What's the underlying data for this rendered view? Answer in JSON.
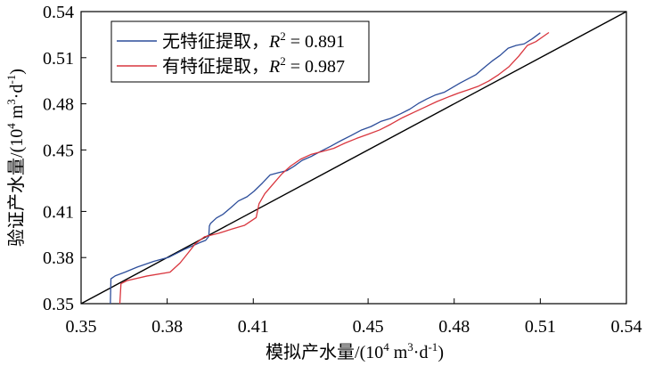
{
  "chart_data": {
    "type": "line",
    "xlabel_main": "模拟产水量/(10",
    "xlabel_sup1": "4",
    "xlabel_mid": " m",
    "xlabel_sup2": "3",
    "xlabel_mid2": "·d",
    "xlabel_sup3": "-1",
    "xlabel_end": ")",
    "ylabel_main": "验证产水量/(10",
    "ylabel_sup1": "4",
    "ylabel_mid": " m",
    "ylabel_sup2": "3",
    "ylabel_mid2": "·d",
    "ylabel_sup3": "-1",
    "ylabel_end": ")",
    "xlim": [
      0.35,
      0.54
    ],
    "ylim": [
      0.35,
      0.54
    ],
    "x_ticks": [
      0.35,
      0.38,
      0.41,
      0.45,
      0.48,
      0.51,
      0.54
    ],
    "x_tick_labels": [
      "0.35",
      "0.38",
      "0.41",
      "0.45",
      "0.48",
      "0.51",
      "0.54"
    ],
    "y_ticks": [
      0.35,
      0.38,
      0.41,
      0.45,
      0.48,
      0.51,
      0.54
    ],
    "y_tick_labels": [
      "0.35",
      "0.38",
      "0.41",
      "0.45",
      "0.48",
      "0.51",
      "0.54"
    ],
    "grid": false,
    "legend_position": "top-left",
    "reference_line": {
      "x": [
        0.35,
        0.54
      ],
      "y": [
        0.35,
        0.54
      ],
      "color": "#000000"
    },
    "series": [
      {
        "legend_prefix": "无特征提取，",
        "legend_var": "R",
        "legend_sup": "2",
        "legend_value": " = 0.891",
        "color": "#2c4d9a",
        "x": [
          0.3602,
          0.3604,
          0.362,
          0.3653,
          0.3696,
          0.3753,
          0.3807,
          0.3862,
          0.3915,
          0.3934,
          0.3945,
          0.3947,
          0.3951,
          0.3972,
          0.3995,
          0.4022,
          0.4048,
          0.4078,
          0.4103,
          0.4132,
          0.4159,
          0.4188,
          0.4217,
          0.4242,
          0.427,
          0.4302,
          0.4337,
          0.437,
          0.4405,
          0.444,
          0.4475,
          0.451,
          0.4544,
          0.4578,
          0.4613,
          0.4645,
          0.4675,
          0.4705,
          0.4735,
          0.4765,
          0.4793,
          0.482,
          0.4848,
          0.4876,
          0.4904,
          0.4932,
          0.496,
          0.4988,
          0.5016,
          0.5044,
          0.5072,
          0.51
        ],
        "y": [
          0.35,
          0.3662,
          0.3682,
          0.3705,
          0.3738,
          0.3775,
          0.3803,
          0.3855,
          0.3898,
          0.3912,
          0.3938,
          0.4005,
          0.4022,
          0.4058,
          0.4082,
          0.4125,
          0.4168,
          0.4195,
          0.4232,
          0.4285,
          0.4338,
          0.4352,
          0.4365,
          0.4394,
          0.4432,
          0.4458,
          0.4493,
          0.4524,
          0.456,
          0.4593,
          0.4628,
          0.4652,
          0.4685,
          0.4705,
          0.4735,
          0.4765,
          0.4802,
          0.4832,
          0.4858,
          0.4875,
          0.4905,
          0.4935,
          0.4962,
          0.499,
          0.5035,
          0.5078,
          0.5115,
          0.5162,
          0.518,
          0.519,
          0.5223,
          0.5262
        ]
      },
      {
        "legend_prefix": "有特征提取，",
        "legend_var": "R",
        "legend_sup": "2",
        "legend_value": " = 0.987",
        "color": "#d9363e",
        "x": [
          0.3635,
          0.3639,
          0.366,
          0.373,
          0.381,
          0.3845,
          0.387,
          0.3898,
          0.393,
          0.398,
          0.4025,
          0.407,
          0.411,
          0.412,
          0.414,
          0.417,
          0.42,
          0.423,
          0.4265,
          0.43,
          0.434,
          0.438,
          0.442,
          0.446,
          0.45,
          0.454,
          0.458,
          0.462,
          0.466,
          0.47,
          0.474,
          0.478,
          0.4815,
          0.485,
          0.4885,
          0.492,
          0.4955,
          0.499,
          0.5025,
          0.5055,
          0.5085,
          0.511,
          0.513
        ],
        "y": [
          0.35,
          0.363,
          0.365,
          0.368,
          0.3705,
          0.3765,
          0.3823,
          0.389,
          0.3935,
          0.3958,
          0.3985,
          0.401,
          0.406,
          0.415,
          0.4215,
          0.428,
          0.4345,
          0.4395,
          0.444,
          0.447,
          0.449,
          0.451,
          0.4545,
          0.4575,
          0.4602,
          0.463,
          0.4668,
          0.471,
          0.4745,
          0.478,
          0.4815,
          0.4845,
          0.487,
          0.4892,
          0.4915,
          0.4948,
          0.499,
          0.504,
          0.511,
          0.518,
          0.5205,
          0.5238,
          0.5264
        ]
      }
    ]
  }
}
